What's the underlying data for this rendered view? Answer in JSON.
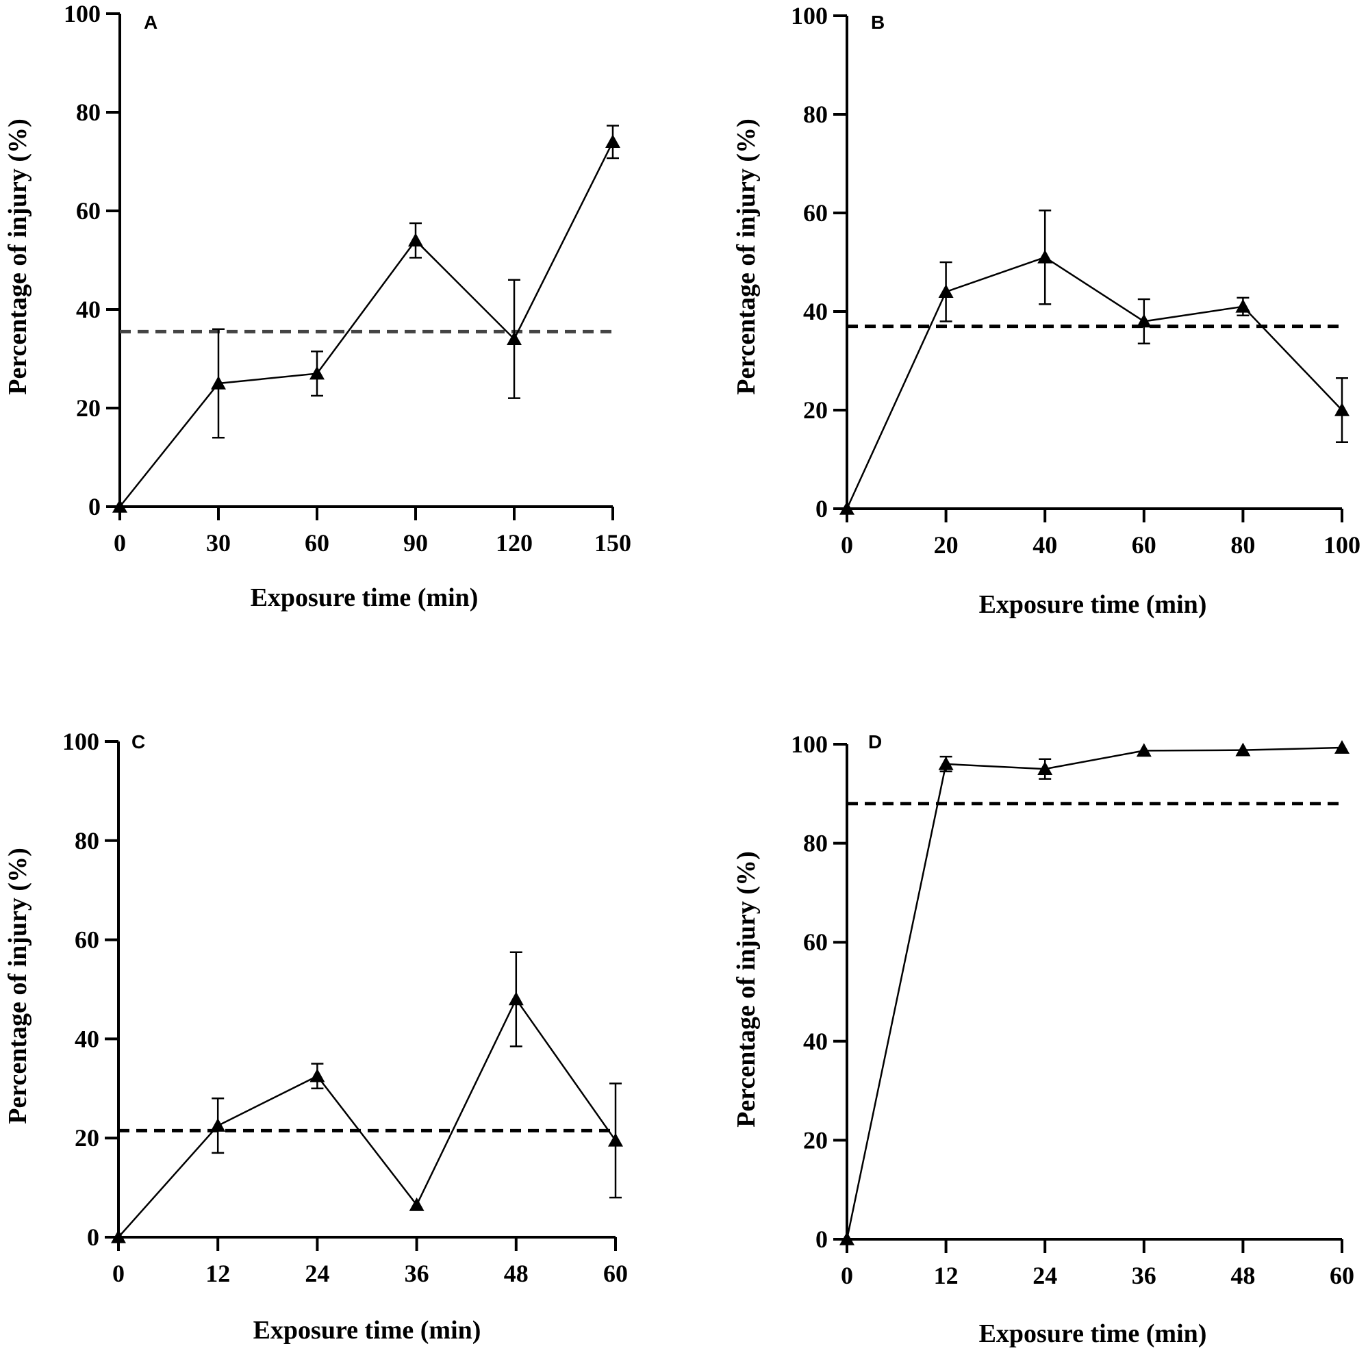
{
  "figure": {
    "description_labels": [
      "A",
      "B",
      "C",
      "D"
    ]
  },
  "chart_data": [
    {
      "panel": "A",
      "type": "line",
      "xlabel": "Exposure time (min)",
      "ylabel": "Percentage of injury (%)",
      "x": [
        0,
        30,
        60,
        90,
        120,
        150
      ],
      "y": [
        0,
        25,
        27,
        54,
        34,
        74
      ],
      "error": [
        0,
        11,
        4.5,
        3.5,
        12,
        3.3
      ],
      "xticks": [
        0,
        30,
        60,
        90,
        120,
        150
      ],
      "yticks": [
        0,
        20,
        40,
        60,
        80,
        100
      ],
      "xlim": [
        0,
        150
      ],
      "ylim": [
        0,
        100
      ],
      "reference_line": 35.5,
      "marker": "triangle",
      "grid": false
    },
    {
      "panel": "B",
      "type": "line",
      "xlabel": "Exposure time (min)",
      "ylabel": "Percentage of injury (%)",
      "x": [
        0,
        20,
        40,
        60,
        80,
        100
      ],
      "y": [
        0,
        44,
        51,
        38,
        41,
        20
      ],
      "error": [
        0,
        6,
        9.5,
        4.5,
        1.8,
        6.5
      ],
      "xticks": [
        0,
        20,
        40,
        60,
        80,
        100
      ],
      "yticks": [
        0,
        20,
        40,
        60,
        80,
        100
      ],
      "xlim": [
        0,
        100
      ],
      "ylim": [
        0,
        100
      ],
      "reference_line": 37,
      "marker": "triangle",
      "grid": false
    },
    {
      "panel": "C",
      "type": "line",
      "xlabel": "Exposure time (min)",
      "ylabel": "Percentage of injury (%)",
      "x": [
        0,
        12,
        24,
        36,
        48,
        60
      ],
      "y": [
        0,
        22.5,
        32.5,
        6.5,
        48,
        19.5
      ],
      "error": [
        0,
        5.5,
        2.5,
        0,
        9.5,
        11.5
      ],
      "xticks": [
        0,
        12,
        24,
        36,
        48,
        60
      ],
      "yticks": [
        0,
        20,
        40,
        60,
        80,
        100
      ],
      "xlim": [
        0,
        60
      ],
      "ylim": [
        0,
        100
      ],
      "reference_line": 21.5,
      "marker": "triangle",
      "grid": false
    },
    {
      "panel": "D",
      "type": "line",
      "xlabel": "Exposure time (min)",
      "ylabel": "Percentage of injury (%)",
      "x": [
        0,
        12,
        24,
        36,
        48,
        60
      ],
      "y": [
        0,
        96,
        95,
        98.7,
        98.8,
        99.3
      ],
      "error": [
        0,
        1.5,
        2,
        0,
        0,
        0
      ],
      "xticks": [
        0,
        12,
        24,
        36,
        48,
        60
      ],
      "yticks": [
        0,
        20,
        40,
        60,
        80,
        100
      ],
      "xlim": [
        0,
        60
      ],
      "ylim": [
        0,
        100
      ],
      "reference_line": 88,
      "marker": "triangle",
      "grid": false
    }
  ]
}
